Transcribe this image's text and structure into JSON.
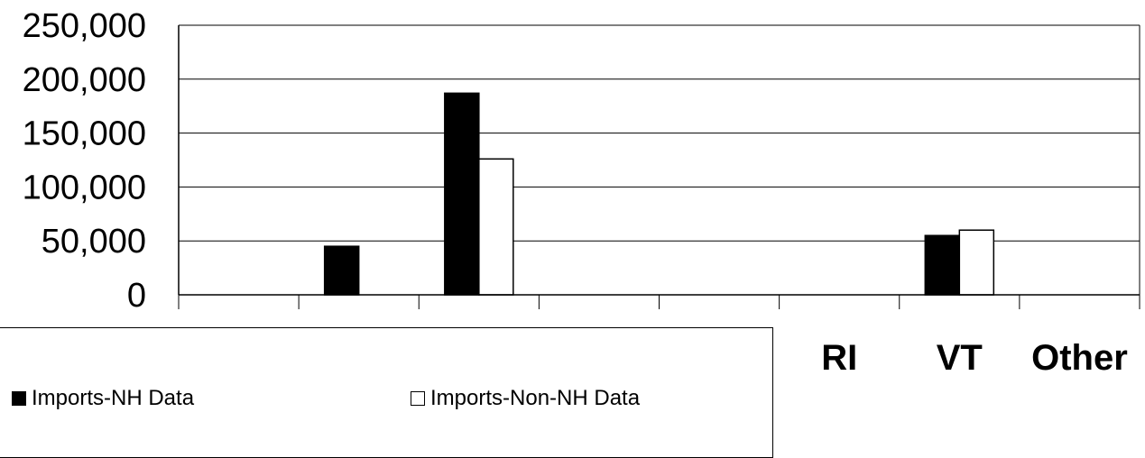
{
  "chart_data": {
    "type": "bar",
    "categories": [
      "",
      "",
      "",
      "",
      "",
      "RI",
      "VT",
      "Other"
    ],
    "series": [
      {
        "name": "Imports-NH Data",
        "color": "#000000",
        "values": [
          0,
          45000,
          187000,
          0,
          0,
          0,
          55000,
          0
        ]
      },
      {
        "name": "Imports-Non-NH Data",
        "color": "#ffffff",
        "values": [
          0,
          0,
          126000,
          0,
          0,
          0,
          60000,
          0
        ]
      }
    ],
    "ylim": [
      0,
      250000
    ],
    "yticks": [
      0,
      50000,
      100000,
      150000,
      200000,
      250000
    ],
    "ytick_labels": [
      "0",
      "50,000",
      "100,000",
      "150,000",
      "200,000",
      "250,000"
    ],
    "grid": true,
    "legend_position": "bottom-left"
  },
  "legend": {
    "items": [
      {
        "label": "Imports-NH Data",
        "color": "#000000"
      },
      {
        "label": "Imports-Non-NH Data",
        "color": "#ffffff"
      }
    ]
  }
}
